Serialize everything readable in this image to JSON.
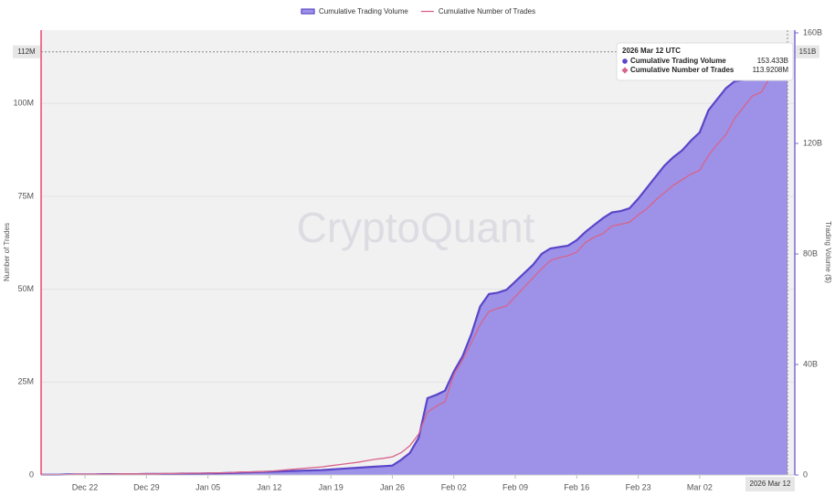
{
  "chart_data": {
    "type": "area_line",
    "watermark": "CryptoQuant",
    "y_label": "Number of Trades",
    "y2_label": "Trading Volume ($)",
    "categories": [
      "Dec 17",
      "Dec 18",
      "Dec 19",
      "Dec 20",
      "Dec 21",
      "Dec 22",
      "Dec 23",
      "Dec 24",
      "Dec 25",
      "Dec 26",
      "Dec 27",
      "Dec 28",
      "Dec 29",
      "Dec 30",
      "Dec 31",
      "Jan 01",
      "Jan 02",
      "Jan 03",
      "Jan 04",
      "Jan 05",
      "Jan 06",
      "Jan 07",
      "Jan 08",
      "Jan 09",
      "Jan 10",
      "Jan 11",
      "Jan 12",
      "Jan 13",
      "Jan 14",
      "Jan 15",
      "Jan 16",
      "Jan 17",
      "Jan 18",
      "Jan 19",
      "Jan 20",
      "Jan 21",
      "Jan 22",
      "Jan 23",
      "Jan 24",
      "Jan 25",
      "Jan 26",
      "Jan 27",
      "Jan 28",
      "Jan 29",
      "Jan 30",
      "Jan 31",
      "Feb 01",
      "Feb 02",
      "Feb 03",
      "Feb 04",
      "Feb 05",
      "Feb 06",
      "Feb 07",
      "Feb 08",
      "Feb 09",
      "Feb 10",
      "Feb 11",
      "Feb 12",
      "Feb 13",
      "Feb 14",
      "Feb 15",
      "Feb 16",
      "Feb 17",
      "Feb 18",
      "Feb 19",
      "Feb 20",
      "Feb 21",
      "Feb 22",
      "Feb 23",
      "Feb 24",
      "Feb 25",
      "Feb 26",
      "Feb 27",
      "Feb 28",
      "Mar 01",
      "Mar 02",
      "Mar 03",
      "Mar 04",
      "Mar 05",
      "Mar 06",
      "Mar 07",
      "Mar 08",
      "Mar 09",
      "Mar 10",
      "Mar 11",
      "Mar 12"
    ],
    "xticks": [
      "Dec 22",
      "Dec 29",
      "Jan 05",
      "Jan 12",
      "Jan 19",
      "Jan 26",
      "Feb 02",
      "Feb 09",
      "Feb 16",
      "Feb 23",
      "Mar 02"
    ],
    "series": [
      {
        "name": "Cumulative Trading Volume",
        "color": "#5a45c9",
        "fill": "#9d92e8",
        "axis": "y2",
        "values": [
          0.1,
          0.1,
          0.1,
          0.2,
          0.2,
          0.2,
          0.2,
          0.3,
          0.3,
          0.3,
          0.3,
          0.3,
          0.4,
          0.4,
          0.4,
          0.4,
          0.5,
          0.5,
          0.5,
          0.6,
          0.6,
          0.7,
          0.8,
          0.9,
          1.0,
          1.1,
          1.2,
          1.3,
          1.4,
          1.5,
          1.6,
          1.7,
          1.8,
          2.0,
          2.2,
          2.4,
          2.6,
          2.8,
          3.0,
          3.2,
          3.4,
          5.5,
          8.0,
          13.5,
          27.8,
          29.0,
          30.5,
          37.5,
          43,
          51,
          61,
          65.5,
          66,
          67,
          70,
          73,
          76,
          80,
          82,
          82.5,
          83,
          85,
          88,
          90.5,
          93,
          95,
          95.5,
          96.5,
          100,
          104,
          108,
          112,
          115,
          117.5,
          121,
          124,
          132,
          136,
          140,
          142.5,
          143,
          144,
          146,
          148,
          151.5,
          153.4
        ]
      },
      {
        "name": "Cumulative Number of Trades",
        "color": "#d9638a",
        "axis": "y",
        "values": [
          0.1,
          0.1,
          0.1,
          0.1,
          0.2,
          0.2,
          0.2,
          0.2,
          0.2,
          0.3,
          0.3,
          0.3,
          0.3,
          0.3,
          0.4,
          0.4,
          0.4,
          0.5,
          0.5,
          0.5,
          0.6,
          0.6,
          0.7,
          0.8,
          0.8,
          0.9,
          1.0,
          1.2,
          1.4,
          1.6,
          1.8,
          2.0,
          2.2,
          2.5,
          2.8,
          3.1,
          3.4,
          3.8,
          4.2,
          4.5,
          4.9,
          6.0,
          7.9,
          11.0,
          17.0,
          18.5,
          19.7,
          27,
          31,
          35.6,
          40.5,
          44,
          44.8,
          45.5,
          48,
          50.5,
          53,
          55.5,
          57.7,
          58.5,
          59,
          60,
          62.6,
          64,
          65,
          67,
          67.5,
          68,
          70,
          71.7,
          74,
          76,
          78,
          79.5,
          81,
          82,
          86,
          89,
          91.6,
          96,
          99,
          102,
          103,
          107,
          110.6,
          113.9
        ]
      }
    ],
    "ylim": [
      0,
      119
    ],
    "yticks": [
      0,
      {
        "value": 25,
        "label": "25M"
      },
      {
        "value": 50,
        "label": "50M"
      },
      {
        "value": 75,
        "label": "75M"
      },
      {
        "value": 100,
        "label": "100M"
      }
    ],
    "y2lim": [
      0,
      160
    ],
    "y2ticks": [
      0,
      {
        "value": 40,
        "label": "40B"
      },
      {
        "value": 80,
        "label": "80B"
      },
      {
        "value": 120,
        "label": "120B"
      },
      {
        "value": 160,
        "label": "160B"
      }
    ],
    "grid": true,
    "crosshair": {
      "x_label": "2026 Mar 12",
      "y_label": "112M",
      "y2_label": "151B"
    },
    "tooltip": {
      "title": "2026 Mar 12 UTC",
      "rows": [
        {
          "name": "Cumulative Trading Volume",
          "value": "153.433B"
        },
        {
          "name": "Cumulative Number of Trades",
          "value": "113.9208M"
        }
      ]
    }
  }
}
